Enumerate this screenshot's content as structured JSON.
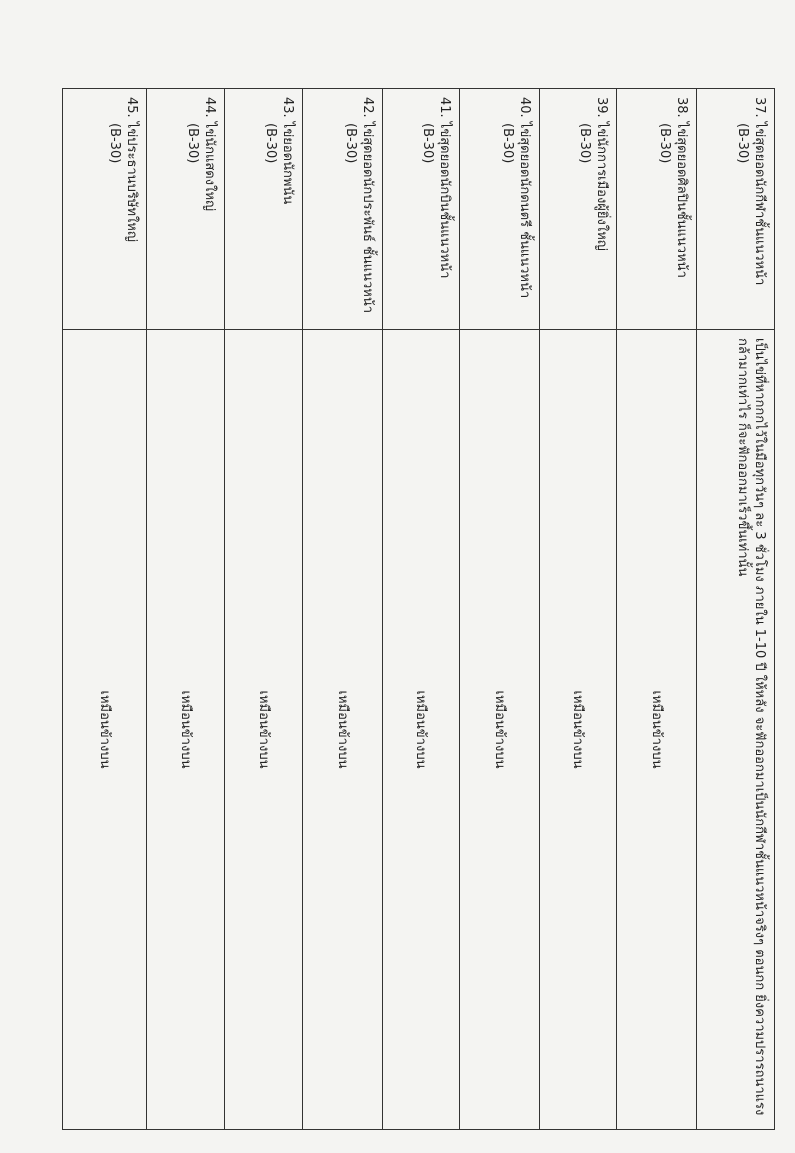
{
  "rows": [
    {
      "name": "37. ไข่สุดยอดนักกีฬาชั้นแนวหน้า",
      "code": "(B-30)",
      "description": "เป็นไข่ที่หากกกไว้ในมือทุกวันๆ ละ 3 ชั่วโมง ภายใน 1-10 ปี ให้หลัง จะฟักออกมาเป็นนักกีฬาชั้นแนวหน้าจริงๆ ตอนกก ยิ่งความปรารถนาแรงกล้ามากเท่าไร ก็จะฟักออกมาเร็วขึ้นเท่านั้น"
    },
    {
      "name": "38. ไข่สุดยอดศิลปินชั้นแนวหน้า",
      "code": "(B-30)",
      "description": "เหมือนข้างบน"
    },
    {
      "name": "39. ไข่นักการเมืองผู้ยิ่งใหญ่",
      "code": "(B-30)",
      "description": "เหมือนข้างบน"
    },
    {
      "name": "40. ไข่สุดยอดนักดนตรี ชั้นแนวหน้า",
      "code": "(B-30)",
      "description": "เหมือนข้างบน"
    },
    {
      "name": "41. ไข่สุดยอดนักบินชั้นแนวหน้า",
      "code": "(B-30)",
      "description": "เหมือนข้างบน"
    },
    {
      "name": "42. ไข่สุดยอดนักประพันธ์ ชั้นแนวหน้า",
      "code": "(B-30)",
      "description": "เหมือนข้างบน"
    },
    {
      "name": "43. ไข่ยอดนักพนัน",
      "code": "(B-30)",
      "description": "เหมือนข้างบน"
    },
    {
      "name": "44. ไข่นักแสดงใหญ่",
      "code": "(B-30)",
      "description": "เหมือนข้างบน"
    },
    {
      "name": "45. ไข่ประธานบริษัทใหญ่",
      "code": "(B-30)",
      "description": "เหมือนข้างบน"
    }
  ]
}
